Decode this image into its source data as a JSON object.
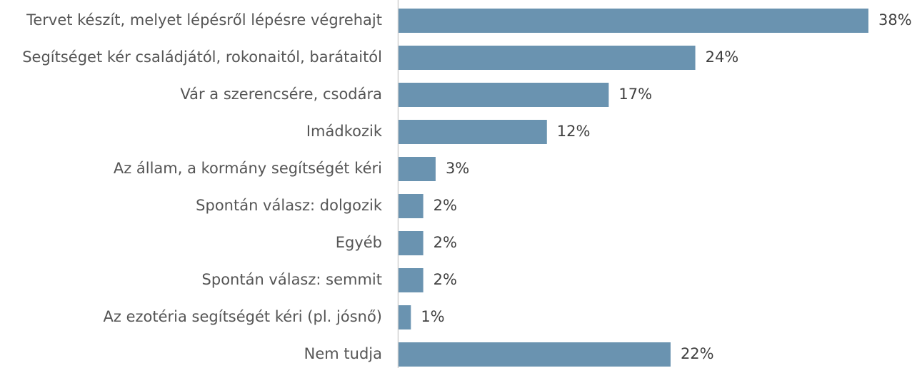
{
  "chart_data": {
    "type": "hbar",
    "categories": [
      "Tervet készít, melyet lépésről lépésre végrehajt",
      "Segítséget kér családjától, rokonaitól, barátaitól",
      "Vár a szerencsére, csodára",
      "Imádkozik",
      "Az állam, a kormány segítségét kéri",
      "Spontán válasz: dolgozik",
      "Egyéb",
      "Spontán válasz: semmit",
      "Az ezotéria segítségét kéri (pl. jósnő)",
      "Nem tudja"
    ],
    "values": [
      38,
      24,
      17,
      12,
      3,
      2,
      2,
      2,
      1,
      22
    ],
    "value_labels": [
      "38%",
      "24%",
      "17%",
      "12%",
      "3%",
      "2%",
      "2%",
      "2%",
      "1%",
      "22%"
    ],
    "color": "#6a93b0"
  }
}
